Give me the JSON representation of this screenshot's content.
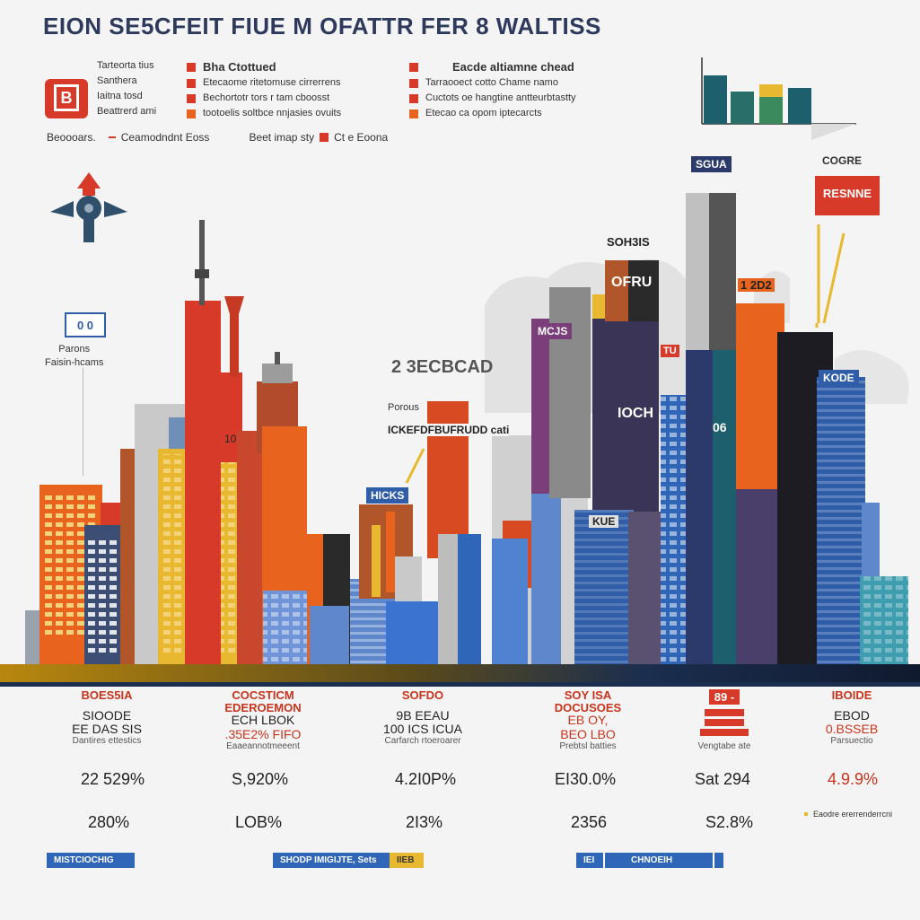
{
  "title": "EION SE5CFEIT FIUE M OFATTR FER 8 WALTISS",
  "legend": {
    "left_labels": [
      "Tarteorta tius",
      "Santhera",
      "Iaitna tosd",
      "Beattrerd ami"
    ],
    "col1_title": "Bha Ctottued",
    "col1_items": [
      "Etecaome ritetomuse cirrerrens",
      "Bechortotr tors r tam cboosst",
      "tootoelis soltbce nnjasies ovuits"
    ],
    "col2_title": "Eacde altiamne chead",
    "col2_items": [
      "Tarraooect cotto Chame namo",
      "Cuctots oe hangtine antteurbtastty",
      "Etecao ca opom iptecarcts"
    ],
    "footer_items": [
      "Beoooars.",
      "Ceamodndnt Eoss",
      "Beet imap sty",
      "Ct e Eoona"
    ],
    "icon_box_glyph": "B",
    "colors": {
      "red": "#d83a2a",
      "orange": "#e8641e",
      "blue": "#2f5da8",
      "navy": "#1b2e4f",
      "teal": "#1e5f6e",
      "green": "#3a8a5e",
      "yellow": "#e8b830",
      "gray": "#8a8a8a"
    }
  },
  "callouts": {
    "left_badge": "0 0",
    "left_text": "Parons\nFaisin-hcams",
    "mid_value": "2 3ECBCAD",
    "mid_small": "Porous",
    "mid_wide": "ICKEFDFBUFRUDD cati",
    "tag_hicks": "HICKS",
    "tag_num10": "10",
    "tag_sohsis": "SOH3IS",
    "tag_ofru": "OFRU",
    "tag_mcjs": "MCJS",
    "tag_ioch": "IOCH",
    "tag_tu": "TU",
    "tag_sgua": "SGUA",
    "tag_kode": "KODE",
    "tag_1202": "1 2D2",
    "tag_06": "06",
    "tag_kue": "KUE",
    "tag_resnne": "RESNNE",
    "label_cogre": "COGRE"
  },
  "stats": [
    {
      "head": "BOES5IA",
      "v1": "SIOODE",
      "v2": "EE DAS SIS",
      "sub": "Dantires ettestics",
      "big1": "22 529%",
      "big2": "280%"
    },
    {
      "head": "COCSTICM\nEDEROEMON",
      "v1": "ECH LBOK",
      "v2": ".35E2% FIFO",
      "sub": "Eaaeannotmeeent",
      "big1": "S,920%",
      "big2": "LOB%"
    },
    {
      "head": "SOFDO",
      "v1": "9B EEAU",
      "v2": "100 ICS ICUA",
      "sub": "Carfarch rtoeroarer",
      "big1": "4.2I0P%",
      "big2": "2I3%"
    },
    {
      "head": "SOY ISA\nDOCUSOES",
      "v1": "EB OY,",
      "v2": "BEO LBO",
      "sub": "Prebtsl batties",
      "big1": "EI30.0%",
      "big2": "2356"
    },
    {
      "head": "89 -",
      "v1": "",
      "v2": "",
      "sub": "Vengtabe ate",
      "big1": "Sat 294",
      "big2": "S2.8%"
    },
    {
      "head": "IBOIDE",
      "v1": "EBOD",
      "v2": "0.BSSEB",
      "sub": "Parsuectio",
      "big1": "4.9.9%",
      "big2": ""
    }
  ],
  "side_note": "Eaodre ererrenderrcni",
  "footer_bars": [
    {
      "label": "MISTCIOCHIG"
    },
    {
      "label": "SHODP IMIGIJTE, Sets",
      "chip": "IIEB"
    },
    {
      "label": "IEI",
      "label2": "CHNOEIH"
    }
  ]
}
